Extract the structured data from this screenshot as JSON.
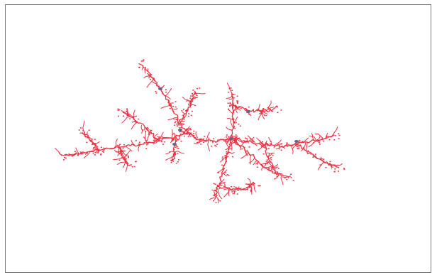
{
  "canvas": {
    "background": "#ffffff",
    "border_color": "#7a7a7a",
    "cluster_color": "#ee3344",
    "seed_color": "#666688",
    "content": "diffusion-limited-aggregation-cluster"
  }
}
